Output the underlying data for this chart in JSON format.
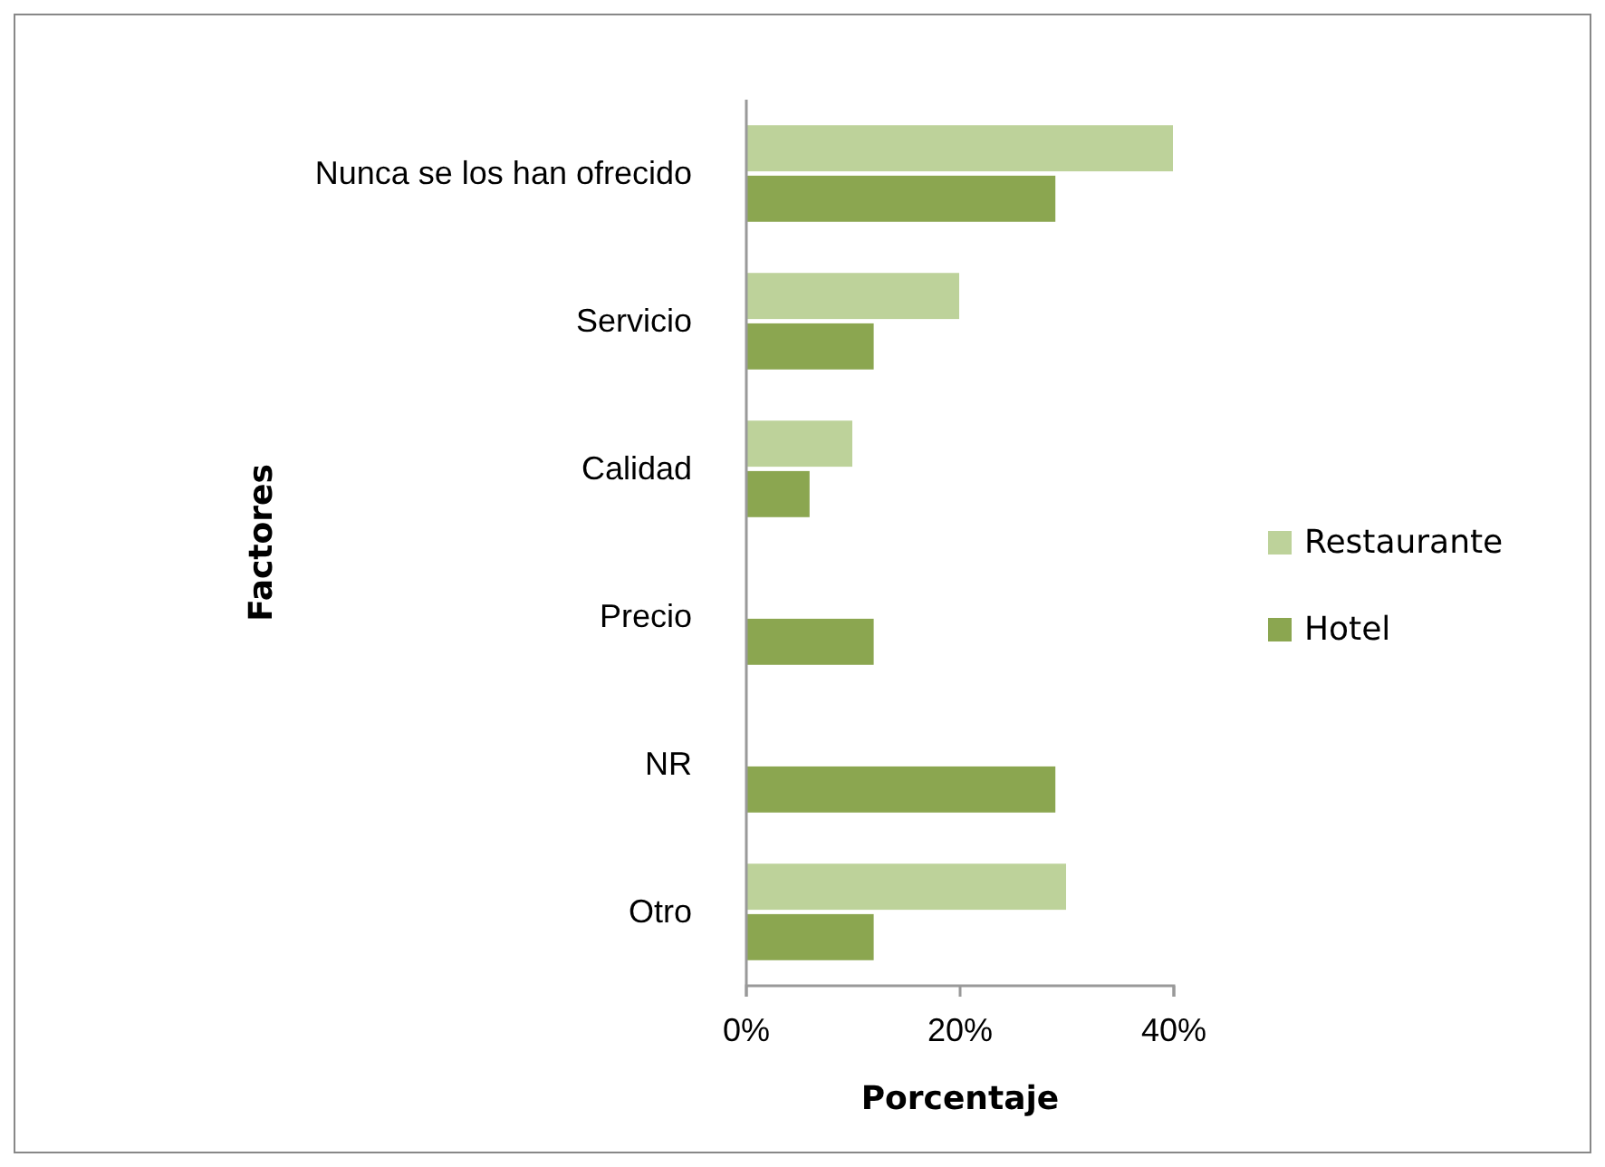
{
  "chart_data": {
    "type": "bar",
    "orientation": "horizontal",
    "xlabel": "Porcentaje",
    "ylabel": "Factores",
    "categories": [
      "Nunca se los han ofrecido",
      "Servicio",
      "Calidad",
      "Precio",
      "NR",
      "Otro"
    ],
    "series": [
      {
        "name": "Restaurante",
        "color": "#bdd29a",
        "values": [
          40,
          20,
          10,
          0,
          0,
          30
        ]
      },
      {
        "name": "Hotel",
        "color": "#8ba650",
        "values": [
          29,
          12,
          6,
          12,
          29,
          12
        ]
      }
    ],
    "xlim": [
      0,
      40
    ],
    "xticks": [
      {
        "value": 0,
        "label": "0%"
      },
      {
        "value": 20,
        "label": "20%"
      },
      {
        "value": 40,
        "label": "40%"
      }
    ],
    "grid": false,
    "legend": "right"
  }
}
